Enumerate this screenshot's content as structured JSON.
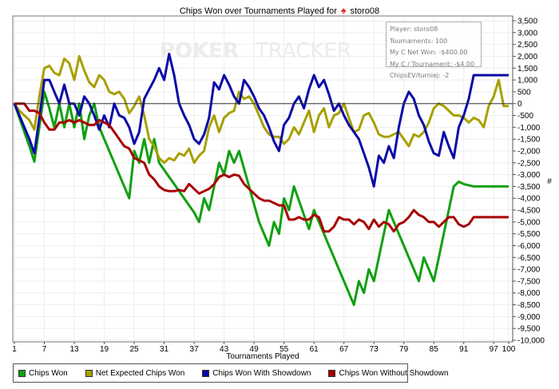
{
  "title": {
    "text": "Chips Won over Tournaments Played for",
    "player": "storo08",
    "icon": "spade-icon",
    "icon_color": "#e02020"
  },
  "watermark": "POKERTRACKER",
  "infobox": {
    "player": "Player: storo08",
    "tournaments": "Tournaments: 100",
    "net_won": "My C Net Won: -$400.00",
    "per_tournament": "My C / Tournament: -$4.00",
    "chips_ev": "ChipsEV/turniej: -2"
  },
  "chart_data": {
    "type": "line",
    "title": "Chips Won over Tournaments Played for storo08",
    "xlabel": "Tournaments Played",
    "ylabel": "#",
    "xlim": [
      1,
      100
    ],
    "ylim": [
      -10000,
      3500
    ],
    "grid": true,
    "legend_position": "bottom",
    "x_ticks": [
      "1",
      "7",
      "13",
      "19",
      "25",
      "31",
      "37",
      "43",
      "49",
      "55",
      "61",
      "67",
      "73",
      "79",
      "85",
      "91",
      "97",
      "100"
    ],
    "x_tick_values": [
      1,
      7,
      13,
      19,
      25,
      31,
      37,
      43,
      49,
      55,
      61,
      67,
      73,
      79,
      85,
      91,
      97,
      100
    ],
    "y_ticks": [
      "3,500",
      "3,000",
      "2,500",
      "2,000",
      "1,500",
      "1,000",
      "500",
      "0",
      "-500",
      "-1,000",
      "-1,500",
      "-2,000",
      "-2,500",
      "-3,000",
      "-3,500",
      "-4,000",
      "-4,500",
      "-5,000",
      "-5,500",
      "-6,000",
      "-6,500",
      "-7,000",
      "-7,500",
      "-8,000",
      "-8,500",
      "-9,000",
      "-9,500",
      "-10,000"
    ],
    "y_tick_values": [
      3500,
      3000,
      2500,
      2000,
      1500,
      1000,
      500,
      0,
      -500,
      -1000,
      -1500,
      -2000,
      -2500,
      -3000,
      -3500,
      -4000,
      -4500,
      -5000,
      -5500,
      -6000,
      -6500,
      -7000,
      -7500,
      -8000,
      -8500,
      -9000,
      -9500,
      -10000
    ],
    "series": [
      {
        "name": "Chips Won",
        "color": "#10a010",
        "values": [
          0,
          -600,
          -1200,
          -1800,
          -2450,
          -1000,
          500,
          -200,
          -1000,
          0,
          -1000,
          0,
          -1000,
          0,
          -1500,
          -500,
          0,
          -1000,
          -1500,
          -2000,
          -2500,
          -3000,
          -3500,
          -4000,
          -2000,
          -2500,
          -1500,
          -2500,
          -1500,
          -2500,
          -2800,
          -3100,
          -3400,
          -3700,
          -4000,
          -4300,
          -4600,
          -5000,
          -4000,
          -4500,
          -3500,
          -2500,
          -3000,
          -2000,
          -2500,
          -2000,
          -2750,
          -3500,
          -4250,
          -5000,
          -5500,
          -6000,
          -5000,
          -5500,
          -4000,
          -4500,
          -3500,
          -4100,
          -4700,
          -5300,
          -4500,
          -5000,
          -5500,
          -6000,
          -6500,
          -7000,
          -7500,
          -8000,
          -8500,
          -7500,
          -8000,
          -7000,
          -7500,
          -6500,
          -5500,
          -4500,
          -5000,
          -5500,
          -6000,
          -6500,
          -7000,
          -7500,
          -6500,
          -7000,
          -7500,
          -6500,
          -5500,
          -4500,
          -3500,
          -3300,
          -3400,
          -3450,
          -3500,
          -3500,
          -3500,
          -3500,
          -3500,
          -3500,
          -3500,
          -3500
        ]
      },
      {
        "name": "Net Expected Chips Won",
        "color": "#a8a000",
        "values": [
          0,
          -300,
          -500,
          -700,
          -1100,
          300,
          1500,
          1600,
          1300,
          1200,
          1900,
          1700,
          1000,
          2000,
          1400,
          900,
          700,
          1200,
          1000,
          500,
          400,
          500,
          200,
          -400,
          -100,
          300,
          -500,
          -1500,
          -1800,
          -2300,
          -2500,
          -2300,
          -2400,
          -2100,
          -2200,
          -1900,
          -2500,
          -2200,
          -2000,
          -1000,
          -500,
          -1200,
          -600,
          -400,
          -300,
          500,
          200,
          300,
          0,
          -500,
          -1000,
          -1300,
          -1400,
          -1400,
          -1700,
          -1500,
          -1000,
          -1300,
          -800,
          -300,
          -1200,
          -500,
          -200,
          -1000,
          -500,
          -400,
          0,
          -600,
          -1200,
          -1100,
          -500,
          -400,
          -800,
          -1300,
          -1400,
          -1400,
          -1300,
          -1200,
          -1500,
          -1800,
          -1300,
          -1400,
          -1200,
          -800,
          -200,
          0,
          -100,
          -300,
          -500,
          -500,
          -600,
          -800,
          -600,
          -700,
          -1000,
          -100,
          300,
          1000,
          -100,
          -100
        ]
      },
      {
        "name": "Chips Won With Showdown",
        "color": "#0a0aa8",
        "values": [
          0,
          -500,
          -1000,
          -1500,
          -2100,
          -600,
          1000,
          1000,
          500,
          0,
          800,
          0,
          0,
          -500,
          300,
          0,
          -500,
          -1100,
          -500,
          -1000,
          0,
          -500,
          -600,
          -1000,
          -1700,
          -1200,
          200,
          600,
          1000,
          1500,
          1000,
          2100,
          1200,
          0,
          -500,
          -900,
          -1500,
          -1700,
          -1300,
          -600,
          900,
          600,
          1200,
          800,
          300,
          0,
          1000,
          700,
          300,
          -200,
          -500,
          -1000,
          -1600,
          -2000,
          -900,
          -600,
          0,
          300,
          -200,
          600,
          1200,
          700,
          1000,
          400,
          -300,
          0,
          -500,
          -900,
          -1200,
          -1500,
          -2100,
          -2700,
          -3500,
          -2200,
          -2500,
          -1800,
          -2300,
          -1000,
          0,
          500,
          200,
          -500,
          -900,
          -1600,
          -2100,
          -2200,
          -1200,
          -1800,
          -2300,
          -1000,
          -500,
          200,
          1200,
          1200,
          1200,
          1200,
          1200,
          1200,
          1200,
          1200
        ]
      },
      {
        "name": "Chips Won Without Showdown",
        "color": "#a80000",
        "values": [
          0,
          0,
          0,
          -300,
          -300,
          -400,
          -800,
          -1100,
          -1100,
          -800,
          -800,
          -700,
          -800,
          -700,
          -800,
          -900,
          -900,
          -700,
          -800,
          -900,
          -1200,
          -1500,
          -1800,
          -1900,
          -2300,
          -2400,
          -2500,
          -3000,
          -3200,
          -3500,
          -3650,
          -3700,
          -3700,
          -3650,
          -3700,
          -3400,
          -3600,
          -3800,
          -3700,
          -3600,
          -3400,
          -3100,
          -3000,
          -3100,
          -3000,
          -3050,
          -3400,
          -3600,
          -3800,
          -4000,
          -4100,
          -4100,
          -4200,
          -4300,
          -4300,
          -4900,
          -4900,
          -4800,
          -4900,
          -4900,
          -4700,
          -4800,
          -5400,
          -5400,
          -5200,
          -4800,
          -4900,
          -4900,
          -5100,
          -4900,
          -5000,
          -5300,
          -4900,
          -5200,
          -5000,
          -5100,
          -5400,
          -5100,
          -5000,
          -4800,
          -4500,
          -4700,
          -4800,
          -5000,
          -5000,
          -5200,
          -5000,
          -4800,
          -4800,
          -5100,
          -5200,
          -5100,
          -4800,
          -4800,
          -4800,
          -4800,
          -4800,
          -4800,
          -4800,
          -4800
        ]
      }
    ]
  }
}
